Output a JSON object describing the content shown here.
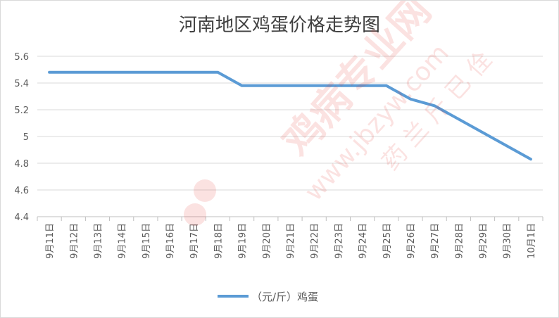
{
  "chart_data": {
    "type": "line",
    "title": "河南地区鸡蛋价格走势图",
    "xlabel": "",
    "ylabel": "",
    "categories": [
      "9月11日",
      "9月12日",
      "9月13日",
      "9月14日",
      "9月15日",
      "9月16日",
      "9月17日",
      "9月18日",
      "9月19日",
      "9月20日",
      "9月21日",
      "9月22日",
      "9月23日",
      "9月24日",
      "9月25日",
      "9月26日",
      "9月27日",
      "9月28日",
      "9月29日",
      "9月30日",
      "10月1日"
    ],
    "series": [
      {
        "name": "（元/斤）鸡蛋",
        "values": [
          5.48,
          5.48,
          5.48,
          5.48,
          5.48,
          5.48,
          5.48,
          5.48,
          5.38,
          5.38,
          5.38,
          5.38,
          5.38,
          5.38,
          5.38,
          5.28,
          5.23,
          5.13,
          5.03,
          4.93,
          4.83
        ]
      }
    ],
    "ylim": [
      4.4,
      5.6
    ],
    "yticks": [
      "4.4",
      "4.6",
      "4.8",
      "5",
      "5.2",
      "5.4",
      "5.6"
    ],
    "grid": true,
    "legend_position": "bottom",
    "line_color": "#5b9bd5"
  }
}
